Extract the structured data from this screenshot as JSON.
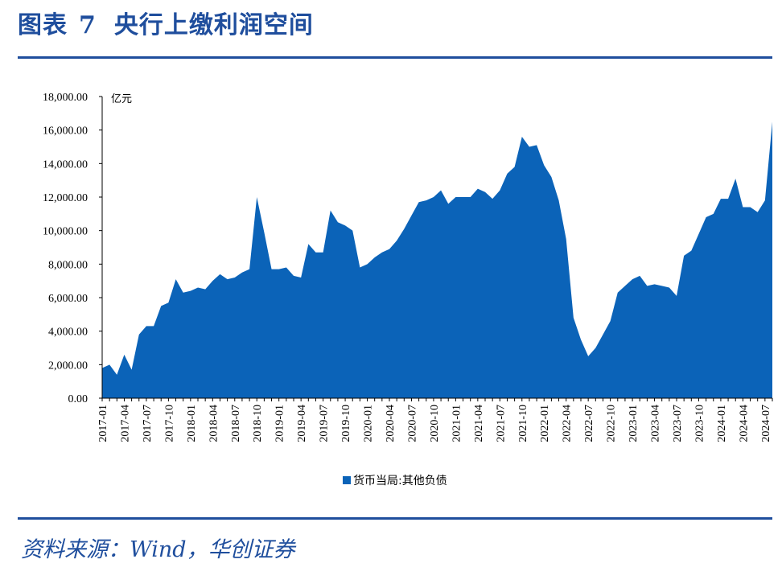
{
  "header": {
    "label": "图表",
    "number": "7",
    "title": "央行上缴利润空间"
  },
  "source": "资料来源：Wind，华创证券",
  "colors": {
    "accent": "#1f4e9d",
    "series": "#0b63b8"
  },
  "chart_data": {
    "type": "area",
    "title": "央行上缴利润空间",
    "unit": "亿元",
    "ylim": [
      0,
      18000
    ],
    "yticks": [
      "0.00",
      "2,000.00",
      "4,000.00",
      "6,000.00",
      "8,000.00",
      "10,000.00",
      "12,000.00",
      "14,000.00",
      "16,000.00",
      "18,000.00"
    ],
    "x_start": "2017-01",
    "xtick_labels": [
      "2017-01",
      "2017-04",
      "2017-07",
      "2017-10",
      "2018-01",
      "2018-04",
      "2018-07",
      "2018-10",
      "2019-01",
      "2019-04",
      "2019-07",
      "2019-10",
      "2020-01",
      "2020-04",
      "2020-07",
      "2020-10",
      "2021-01",
      "2021-04",
      "2021-07",
      "2021-10",
      "2022-01",
      "2022-04",
      "2022-07",
      "2022-10",
      "2023-01",
      "2023-04",
      "2023-07",
      "2023-10",
      "2024-01",
      "2024-04",
      "2024-07"
    ],
    "series": [
      {
        "name": "货币当局:其他负债",
        "values": [
          1800,
          2000,
          1400,
          2600,
          1700,
          3800,
          4300,
          4300,
          5500,
          5700,
          7100,
          6300,
          6400,
          6600,
          6500,
          7000,
          7400,
          7100,
          7200,
          7500,
          7700,
          12000,
          9900,
          7700,
          7700,
          7800,
          7300,
          7200,
          9200,
          8700,
          8700,
          11200,
          10500,
          10300,
          10000,
          7800,
          8000,
          8400,
          8700,
          8900,
          9400,
          10100,
          10900,
          11700,
          11800,
          12000,
          12400,
          11600,
          12000,
          12000,
          12000,
          12500,
          12300,
          11900,
          12400,
          13400,
          13800,
          15600,
          15000,
          15100,
          13900,
          13200,
          11800,
          9500,
          4800,
          3500,
          2500,
          3000,
          3800,
          4600,
          6300,
          6700,
          7100,
          7300,
          6700,
          6800,
          6700,
          6600,
          6100,
          8500,
          8800,
          9800,
          10800,
          11000,
          11900,
          11900,
          13100,
          11400,
          11400,
          11100,
          11800,
          16500
        ]
      }
    ],
    "legend": "bottom-center"
  }
}
